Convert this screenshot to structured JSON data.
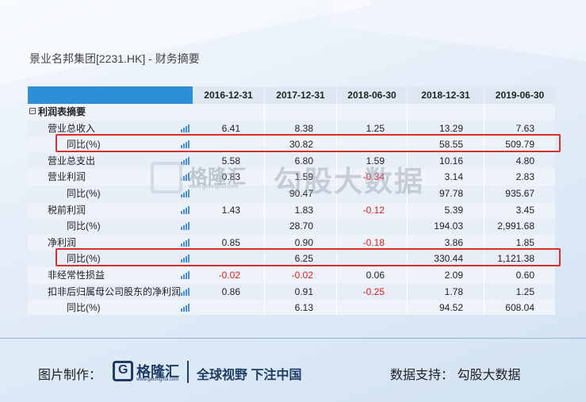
{
  "title": "景业名邦集团[2231.HK] - 财务摘要",
  "columns": [
    "2016-12-31",
    "2017-12-31",
    "2018-06-30",
    "2018-12-31",
    "2019-06-30"
  ],
  "section_label": "利润表摘要",
  "rows": [
    {
      "label": "营业总收入",
      "values": [
        "6.41",
        "8.38",
        "1.25",
        "13.29",
        "7.63"
      ]
    },
    {
      "label": "同比(%)",
      "values": [
        "",
        "30.82",
        "",
        "58.55",
        "509.79"
      ]
    },
    {
      "label": "营业总支出",
      "values": [
        "5.58",
        "6.80",
        "1.59",
        "10.16",
        "4.80"
      ]
    },
    {
      "label": "营业利润",
      "values": [
        "0.83",
        "1.59",
        "-0.34",
        "3.14",
        "2.83"
      ]
    },
    {
      "label": "同比(%)",
      "values": [
        "",
        "90.47",
        "",
        "97.78",
        "935.67"
      ]
    },
    {
      "label": "税前利润",
      "values": [
        "1.43",
        "1.83",
        "-0.12",
        "5.39",
        "3.45"
      ]
    },
    {
      "label": "同比(%)",
      "values": [
        "",
        "28.70",
        "",
        "194.03",
        "2,991.68"
      ]
    },
    {
      "label": "净利润",
      "values": [
        "0.85",
        "0.90",
        "-0.18",
        "3.86",
        "1.85"
      ]
    },
    {
      "label": "同比(%)",
      "values": [
        "",
        "6.25",
        "",
        "330.44",
        "1,121.38"
      ]
    },
    {
      "label": "非经常性损益",
      "values": [
        "-0.02",
        "-0.02",
        "0.06",
        "2.09",
        "0.60"
      ]
    },
    {
      "label": "扣非后归属母公司股东的净利润",
      "values": [
        "0.86",
        "0.91",
        "-0.25",
        "1.78",
        "1.25"
      ]
    },
    {
      "label": "同比(%)",
      "values": [
        "",
        "6.13",
        "",
        "94.52",
        "608.04"
      ]
    }
  ],
  "watermark": {
    "brand": "格隆汇",
    "site": "www.gelonghui.com",
    "partner": "勾股大数据"
  },
  "footer": {
    "made_by_label": "图片制作：",
    "brand": "格隆汇",
    "site": "www.gelonghui.com",
    "slogan": "全球视野 下注中国",
    "data_support": "数据支持：   勾股大数据"
  },
  "colors": {
    "accent_blue": "#2f8fd6",
    "negative_red": "#e01b1b",
    "highlight_red": "#d62f2f",
    "brand_navy": "#1f3c64"
  }
}
